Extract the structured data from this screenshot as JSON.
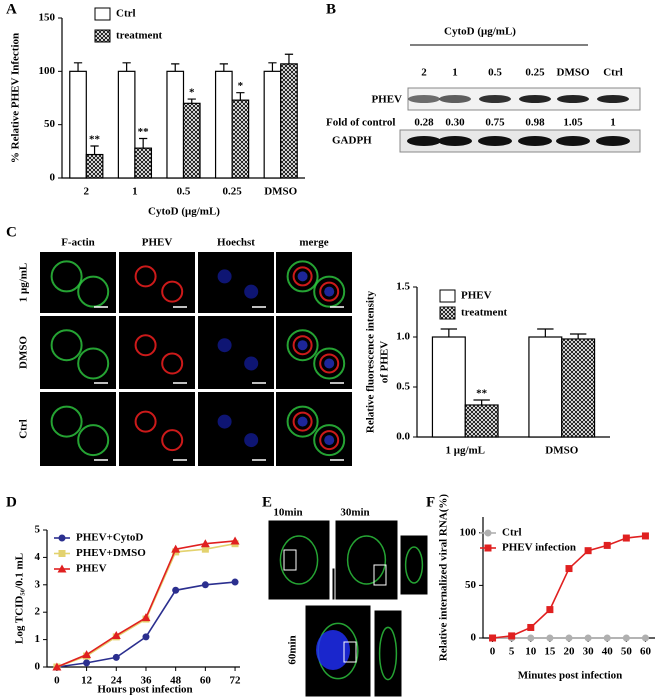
{
  "panel_labels": [
    "A",
    "B",
    "C",
    "D",
    "E",
    "F"
  ],
  "blot": {
    "title": "CytoD (μg/mL)",
    "lanes": [
      "2",
      "1",
      "0.5",
      "0.25",
      "DMSO",
      "Ctrl"
    ],
    "rows": [
      "PHEV",
      "GADPH"
    ],
    "fold_label": "Fold of control",
    "fold_values": [
      "0.28",
      "0.30",
      "0.75",
      "0.98",
      "1.05",
      "1"
    ]
  },
  "micrographs": {
    "columns": [
      "F-actin",
      "PHEV",
      "Hoechst",
      "merge"
    ],
    "rows": [
      "1 μg/mL",
      "DMSO",
      "Ctrl"
    ]
  },
  "time_course_images": [
    "10min",
    "30min",
    "60min"
  ],
  "chart_data": [
    {
      "type": "bar",
      "ylabel": "% Relative PHEV Infection",
      "xlabel": "CytoD (μg/mL)",
      "categories": [
        "2",
        "1",
        "0.5",
        "0.25",
        "DMSO"
      ],
      "series": [
        {
          "name": "Ctrl",
          "color": "#ffffff",
          "values": [
            100,
            100,
            100,
            100,
            100
          ],
          "errors": [
            8,
            8,
            7,
            7,
            8
          ]
        },
        {
          "name": "treatment",
          "color": "#000000",
          "pattern": "crosshatch",
          "values": [
            22,
            28,
            70,
            73,
            107
          ],
          "errors": [
            8,
            9,
            4,
            7,
            9
          ],
          "labels": [
            "**",
            "**",
            "*",
            "*",
            null
          ]
        }
      ],
      "ylim": [
        0,
        150
      ],
      "yticks": [
        0,
        50,
        100,
        150
      ]
    },
    {
      "type": "bar",
      "ylabel": [
        "Relative fluorescence intensity",
        "of PHEV"
      ],
      "categories": [
        "1 μg/mL",
        "DMSO"
      ],
      "series": [
        {
          "name": "PHEV",
          "color": "#ffffff",
          "values": [
            1.0,
            1.0
          ],
          "errors": [
            0.08,
            0.08
          ]
        },
        {
          "name": "treatment",
          "color": "#000000",
          "pattern": "crosshatch",
          "values": [
            0.32,
            0.98
          ],
          "errors": [
            0.05,
            0.05
          ],
          "labels": [
            "**",
            null
          ]
        }
      ],
      "ylim": [
        0,
        1.5
      ],
      "yticks": [
        {
          "value": 0,
          "label": "0.0"
        },
        0.5,
        {
          "value": 1,
          "label": "1.0"
        },
        1.5
      ]
    },
    {
      "type": "line",
      "ylabel": "Log TCID₅₀/0.1 mL",
      "xlabel": "Hours post infection",
      "x": [
        0,
        12,
        24,
        36,
        48,
        60,
        72
      ],
      "series": [
        {
          "name": "PHEV+CytoD",
          "color": "#2b2f8f",
          "marker": "circle",
          "values": [
            0,
            0.15,
            0.35,
            1.1,
            2.8,
            3.0,
            3.1
          ]
        },
        {
          "name": "PHEV+DMSO",
          "color": "#e3d26e",
          "marker": "square",
          "values": [
            0,
            0.4,
            1.1,
            1.75,
            4.2,
            4.3,
            4.5
          ]
        },
        {
          "name": "PHEV",
          "color": "#e02020",
          "marker": "triangle",
          "values": [
            0,
            0.45,
            1.15,
            1.8,
            4.3,
            4.5,
            4.6
          ]
        }
      ],
      "xlim": [
        -4,
        74
      ],
      "xticks": [
        0,
        12,
        24,
        36,
        48,
        60,
        72
      ],
      "ylim": [
        0,
        5
      ],
      "yticks": [
        0,
        1,
        2,
        3,
        4,
        5
      ]
    },
    {
      "type": "line",
      "ylabel": "Relative internalized viral RNA(%)",
      "xlabel": "Minutes post infection",
      "categories": [
        "0",
        "5",
        "10",
        "15",
        "20",
        "30",
        "40",
        "50",
        "60"
      ],
      "series": [
        {
          "name": "Ctrl",
          "color": "#b0b0b0",
          "marker": "circle",
          "values": [
            0,
            0,
            0,
            0,
            0,
            0,
            0,
            0,
            0
          ]
        },
        {
          "name": "PHEV infection",
          "color": "#e02020",
          "marker": "square",
          "values": [
            0,
            2,
            10,
            27,
            66,
            83,
            88,
            95,
            97
          ]
        }
      ],
      "ylim": [
        0,
        115
      ],
      "yticks": [
        0,
        50,
        100
      ]
    }
  ]
}
